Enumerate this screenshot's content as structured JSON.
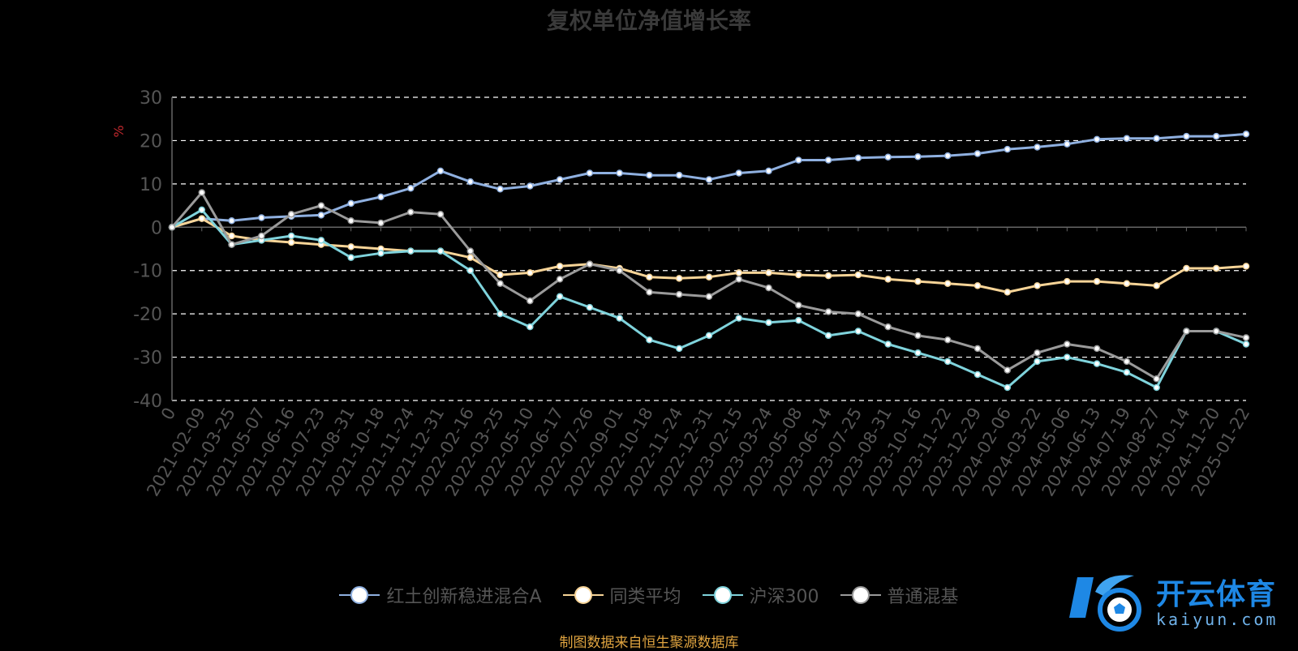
{
  "chart_data": {
    "type": "line",
    "title": "复权单位净值增长率",
    "ylabel": "%",
    "ylim": [
      -40,
      30
    ],
    "yticks": [
      30,
      20,
      10,
      0,
      -10,
      -20,
      -30,
      -40
    ],
    "x": [
      "0",
      "2021-02-09",
      "2021-03-25",
      "2021-05-07",
      "2021-06-16",
      "2021-07-23",
      "2021-08-31",
      "2021-10-18",
      "2021-11-24",
      "2021-12-31",
      "2022-02-16",
      "2022-03-25",
      "2022-05-10",
      "2022-06-17",
      "2022-07-26",
      "2022-09-01",
      "2022-10-18",
      "2022-11-24",
      "2022-12-31",
      "2023-02-15",
      "2023-03-24",
      "2023-05-08",
      "2023-06-14",
      "2023-07-25",
      "2023-08-31",
      "2023-10-16",
      "2023-11-22",
      "2023-12-29",
      "2024-02-06",
      "2024-03-22",
      "2024-05-06",
      "2024-06-13",
      "2024-07-19",
      "2024-08-27",
      "2024-10-14",
      "2024-11-20",
      "2025-01-22"
    ],
    "grid": true,
    "legend_position": "bottom",
    "series": [
      {
        "name": "红土创新稳进混合A",
        "color": "#8fb0e0",
        "values": [
          0,
          2,
          1.5,
          2.2,
          2.5,
          2.8,
          5.5,
          7,
          9,
          13,
          10.5,
          8.8,
          9.5,
          11,
          12.5,
          12.5,
          12,
          12,
          11,
          12.5,
          13,
          15.5,
          15.5,
          16,
          16.2,
          16.3,
          16.5,
          17,
          18,
          18.5,
          19.2,
          20.3,
          20.5,
          20.5,
          21,
          21,
          21.5
        ]
      },
      {
        "name": "同类平均",
        "color": "#f7d497",
        "values": [
          0,
          2,
          -2,
          -3,
          -3.5,
          -4,
          -4.5,
          -5,
          -5.5,
          -5.5,
          -7,
          -11,
          -10.5,
          -9,
          -8.5,
          -9.5,
          -11.5,
          -11.8,
          -11.5,
          -10.5,
          -10.5,
          -11,
          -11.2,
          -11,
          -12,
          -12.5,
          -13,
          -13.5,
          -15,
          -13.5,
          -12.5,
          -12.5,
          -13,
          -13.5,
          -9.5,
          -9.5,
          -9
        ]
      },
      {
        "name": "沪深300",
        "color": "#7fd3dc",
        "values": [
          0,
          4,
          -4,
          -3,
          -2,
          -3,
          -7,
          -6,
          -5.5,
          -5.5,
          -10,
          -20,
          -23,
          -16,
          -18.5,
          -21,
          -26,
          -28,
          -25,
          -21,
          -22,
          -21.5,
          -25,
          -24,
          -27,
          -29,
          -31,
          -34,
          -37,
          -31,
          -30,
          -31.5,
          -33.5,
          -37,
          -24,
          -24,
          -27
        ]
      },
      {
        "name": "普通混基",
        "color": "#9a9a9a",
        "values": [
          0,
          8,
          -4,
          -2,
          3,
          5,
          1.5,
          1,
          3.5,
          3,
          -5.5,
          -13,
          -17,
          -12,
          -8.5,
          -10,
          -15,
          -15.5,
          -16,
          -12,
          -14,
          -18,
          -19.5,
          -20,
          -23,
          -25,
          -26,
          -28,
          -33,
          -29,
          -27,
          -28,
          -31,
          -35,
          -24,
          -24,
          -25.5
        ]
      }
    ]
  },
  "footer": "制图数据来自恒生聚源数据库",
  "brand": {
    "name": "开云体育",
    "url": "kaiyun.com"
  }
}
